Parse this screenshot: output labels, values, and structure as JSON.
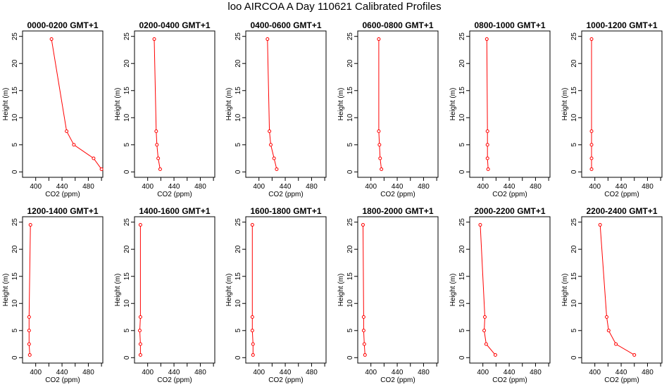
{
  "title": "loo AIRCOA A  Day 110621  Calibrated Profiles",
  "colors": {
    "series": "#ff0000",
    "axis": "#000000"
  },
  "chart_data": [
    {
      "type": "line",
      "title": "0000-0200 GMT+1",
      "xlabel": "CO2 (ppm)",
      "ylabel": "Height (m)",
      "xlim": [
        380,
        502
      ],
      "ylim": [
        -1,
        26
      ],
      "xticks": [
        400,
        440,
        480
      ],
      "xticks_unlabeled": [
        420,
        460,
        500
      ],
      "yticks": [
        0,
        5,
        10,
        15,
        20,
        25
      ],
      "x": [
        500,
        488,
        458,
        447,
        424
      ],
      "y": [
        0.5,
        2.5,
        5,
        7.5,
        24.5
      ]
    },
    {
      "type": "line",
      "title": "0200-0400 GMT+1",
      "xlabel": "CO2 (ppm)",
      "ylabel": "Height (m)",
      "xlim": [
        380,
        502
      ],
      "ylim": [
        -1,
        26
      ],
      "xticks": [
        400,
        440,
        480
      ],
      "xticks_unlabeled": [
        420,
        460,
        500
      ],
      "yticks": [
        0,
        5,
        10,
        15,
        20,
        25
      ],
      "x": [
        419,
        416,
        414,
        413,
        410
      ],
      "y": [
        0.5,
        2.5,
        5,
        7.5,
        24.5
      ]
    },
    {
      "type": "line",
      "title": "0400-0600 GMT+1",
      "xlabel": "CO2 (ppm)",
      "ylabel": "Height (m)",
      "xlim": [
        380,
        502
      ],
      "ylim": [
        -1,
        26
      ],
      "xticks": [
        400,
        440,
        480
      ],
      "xticks_unlabeled": [
        420,
        460,
        500
      ],
      "yticks": [
        0,
        5,
        10,
        15,
        20,
        25
      ],
      "x": [
        427,
        423,
        418,
        416,
        413
      ],
      "y": [
        0.5,
        2.5,
        5,
        7.5,
        24.5
      ]
    },
    {
      "type": "line",
      "title": "0600-0800 GMT+1",
      "xlabel": "CO2 (ppm)",
      "ylabel": "Height (m)",
      "xlim": [
        380,
        502
      ],
      "ylim": [
        -1,
        26
      ],
      "xticks": [
        400,
        440,
        480
      ],
      "xticks_unlabeled": [
        420,
        460,
        500
      ],
      "yticks": [
        0,
        5,
        10,
        15,
        20,
        25
      ],
      "x": [
        416,
        414,
        413,
        412,
        412
      ],
      "y": [
        0.5,
        2.5,
        5,
        7.5,
        24.5
      ]
    },
    {
      "type": "line",
      "title": "0800-1000 GMT+1",
      "xlabel": "CO2 (ppm)",
      "ylabel": "Height (m)",
      "xlim": [
        380,
        502
      ],
      "ylim": [
        -1,
        26
      ],
      "xticks": [
        400,
        440,
        480
      ],
      "xticks_unlabeled": [
        420,
        460,
        500
      ],
      "yticks": [
        0,
        5,
        10,
        15,
        20,
        25
      ],
      "x": [
        408,
        407,
        407,
        407,
        406
      ],
      "y": [
        0.5,
        2.5,
        5,
        7.5,
        24.5
      ]
    },
    {
      "type": "line",
      "title": "1000-1200 GMT+1",
      "xlabel": "CO2 (ppm)",
      "ylabel": "Height (m)",
      "xlim": [
        380,
        502
      ],
      "ylim": [
        -1,
        26
      ],
      "xticks": [
        400,
        440,
        480
      ],
      "xticks_unlabeled": [
        420,
        460,
        500
      ],
      "yticks": [
        0,
        5,
        10,
        15,
        20,
        25
      ],
      "x": [
        395,
        395,
        395,
        395,
        395
      ],
      "y": [
        0.5,
        2.5,
        5,
        7.5,
        24.5
      ]
    },
    {
      "type": "line",
      "title": "1200-1400 GMT+1",
      "xlabel": "CO2 (ppm)",
      "ylabel": "Height (m)",
      "xlim": [
        380,
        502
      ],
      "ylim": [
        -1,
        26
      ],
      "xticks": [
        400,
        440,
        480
      ],
      "xticks_unlabeled": [
        420,
        460,
        500
      ],
      "yticks": [
        0,
        5,
        10,
        15,
        20,
        25
      ],
      "x": [
        391,
        390,
        390,
        390,
        392
      ],
      "y": [
        0.5,
        2.5,
        5,
        7.5,
        24.5
      ]
    },
    {
      "type": "line",
      "title": "1400-1600 GMT+1",
      "xlabel": "CO2 (ppm)",
      "ylabel": "Height (m)",
      "xlim": [
        380,
        502
      ],
      "ylim": [
        -1,
        26
      ],
      "xticks": [
        400,
        440,
        480
      ],
      "xticks_unlabeled": [
        420,
        460,
        500
      ],
      "yticks": [
        0,
        5,
        10,
        15,
        20,
        25
      ],
      "x": [
        389,
        389,
        388,
        389,
        389
      ],
      "y": [
        0.5,
        2.5,
        5,
        7.5,
        24.5
      ]
    },
    {
      "type": "line",
      "title": "1600-1800 GMT+1",
      "xlabel": "CO2 (ppm)",
      "ylabel": "Height (m)",
      "xlim": [
        380,
        502
      ],
      "ylim": [
        -1,
        26
      ],
      "xticks": [
        400,
        440,
        480
      ],
      "xticks_unlabeled": [
        420,
        460,
        500
      ],
      "yticks": [
        0,
        5,
        10,
        15,
        20,
        25
      ],
      "x": [
        391,
        391,
        390,
        390,
        390
      ],
      "y": [
        0.5,
        2.5,
        5,
        7.5,
        24.5
      ]
    },
    {
      "type": "line",
      "title": "1800-2000 GMT+1",
      "xlabel": "CO2 (ppm)",
      "ylabel": "Height (m)",
      "xlim": [
        380,
        502
      ],
      "ylim": [
        -1,
        26
      ],
      "xticks": [
        400,
        440,
        480
      ],
      "xticks_unlabeled": [
        420,
        460,
        500
      ],
      "yticks": [
        0,
        5,
        10,
        15,
        20,
        25
      ],
      "x": [
        391,
        390,
        389,
        389,
        388
      ],
      "y": [
        0.5,
        2.5,
        5,
        7.5,
        24.5
      ]
    },
    {
      "type": "line",
      "title": "2000-2200 GMT+1",
      "xlabel": "CO2 (ppm)",
      "ylabel": "Height (m)",
      "xlim": [
        380,
        502
      ],
      "ylim": [
        -1,
        26
      ],
      "xticks": [
        400,
        440,
        480
      ],
      "xticks_unlabeled": [
        420,
        460,
        500
      ],
      "yticks": [
        0,
        5,
        10,
        15,
        20,
        25
      ],
      "x": [
        419,
        405,
        402,
        403,
        396
      ],
      "y": [
        0.5,
        2.5,
        5,
        7.5,
        24.5
      ]
    },
    {
      "type": "line",
      "title": "2200-2400 GMT+1",
      "xlabel": "CO2 (ppm)",
      "ylabel": "Height (m)",
      "xlim": [
        380,
        502
      ],
      "ylim": [
        -1,
        26
      ],
      "xticks": [
        400,
        440,
        480
      ],
      "xticks_unlabeled": [
        420,
        460,
        500
      ],
      "yticks": [
        0,
        5,
        10,
        15,
        20,
        25
      ],
      "x": [
        460,
        432,
        421,
        418,
        408
      ],
      "y": [
        0.5,
        2.5,
        5,
        7.5,
        24.5
      ]
    }
  ]
}
